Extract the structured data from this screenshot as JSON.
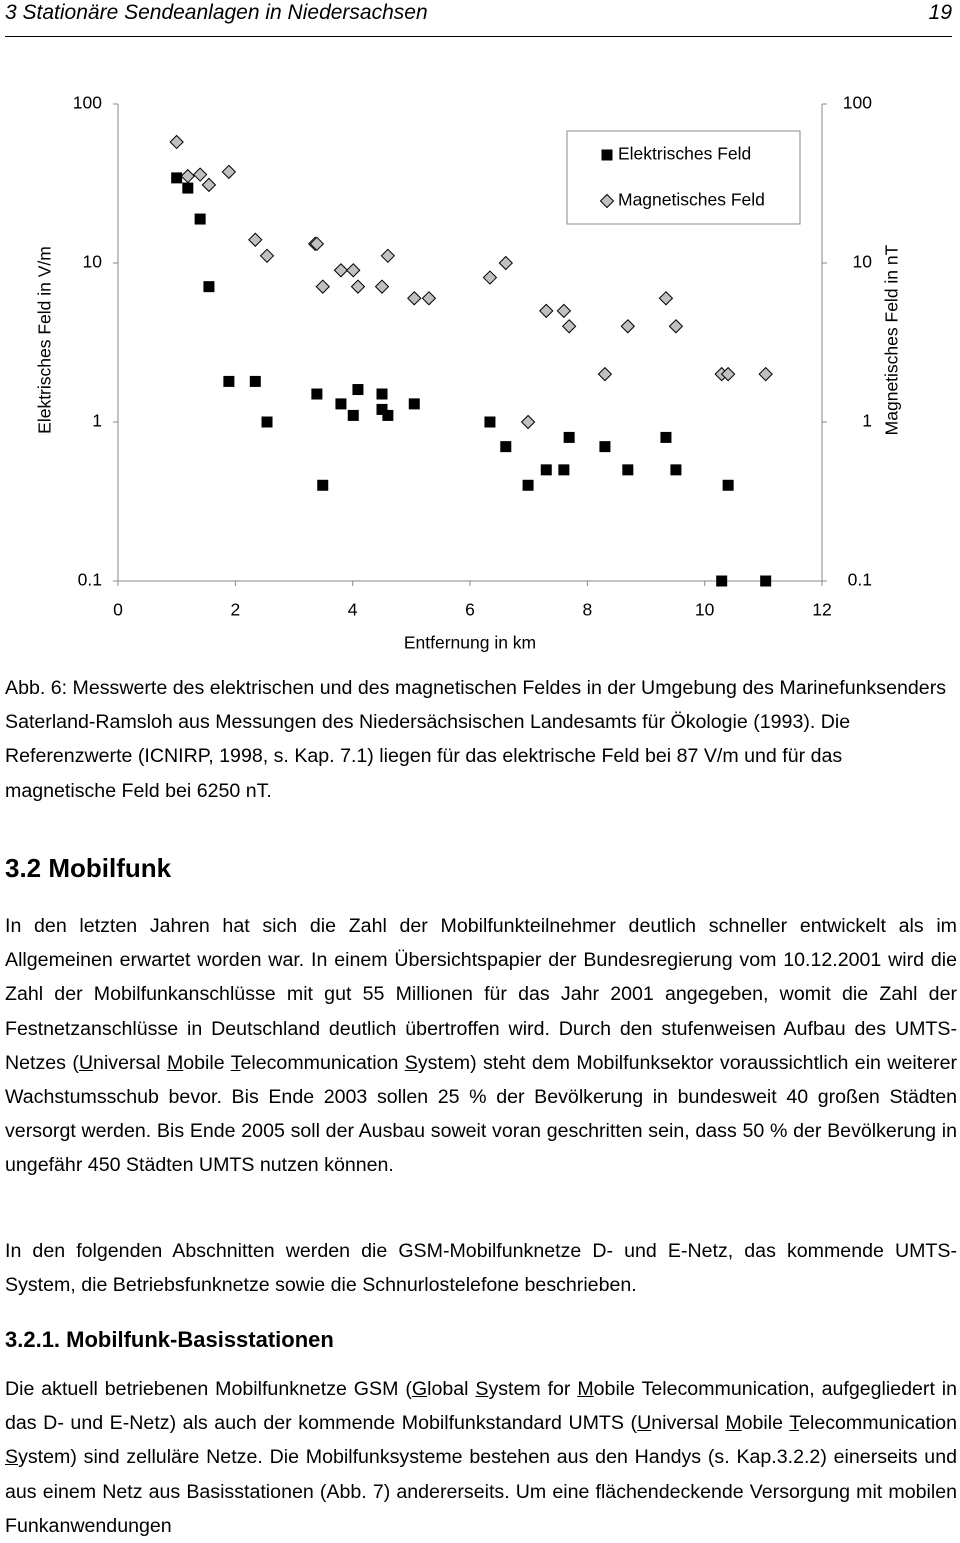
{
  "header": {
    "title": "3 Stationäre Sendeanlagen in Niedersachsen",
    "page": "19"
  },
  "chart_data": {
    "type": "scatter",
    "xlabel": "Entfernung in km",
    "ylabel": "Elektrisches Feld in V/m",
    "y2label": "Magnetisches Feld in nT",
    "xlim": [
      0,
      12
    ],
    "xticks": [
      0,
      2,
      4,
      6,
      8,
      10,
      12
    ],
    "ylim": [
      0.1,
      100
    ],
    "yticks": [
      0.1,
      1,
      10,
      100
    ],
    "y2lim": [
      0.1,
      100
    ],
    "y2ticks": [
      0.1,
      1,
      10,
      100
    ],
    "log_y": true,
    "legend": "upper right",
    "series": [
      {
        "name": "Elektrisches Feld",
        "color": "#000000",
        "marker": "square",
        "x": [
          1.0,
          1.19,
          1.4,
          1.55,
          1.89,
          2.34,
          2.54,
          3.39,
          3.49,
          3.8,
          4.01,
          4.09,
          4.5,
          4.5,
          4.6,
          5.05,
          6.34,
          6.61,
          6.99,
          7.3,
          7.6,
          7.69,
          8.3,
          8.69,
          9.34,
          9.51,
          10.4,
          10.29,
          11.04
        ],
        "values": [
          34.3,
          29.6,
          18.9,
          7.1,
          1.8,
          1.8,
          1.0,
          1.5,
          0.4,
          1.3,
          1.1,
          1.6,
          1.5,
          1.2,
          1.1,
          1.3,
          1.0,
          0.7,
          0.4,
          0.5,
          0.5,
          0.8,
          0.7,
          0.5,
          0.8,
          0.5,
          0.4,
          0.1,
          0.1
        ]
      },
      {
        "name": "Magnetisches Feld",
        "color": "#c0c0c0",
        "marker": "diamond",
        "axis": "y2",
        "x": [
          1.0,
          1.19,
          1.4,
          1.55,
          1.89,
          2.34,
          2.54,
          3.36,
          3.39,
          3.49,
          3.8,
          4.01,
          4.09,
          4.5,
          4.6,
          5.05,
          5.3,
          6.34,
          6.61,
          6.99,
          7.3,
          7.6,
          7.69,
          8.3,
          8.69,
          9.34,
          9.51,
          10.29,
          10.4,
          11.04
        ],
        "values": [
          57.7,
          35.2,
          36,
          31,
          37.4,
          14,
          11.1,
          13.2,
          13.2,
          7.1,
          9.0,
          9.0,
          7.1,
          7.1,
          11.1,
          6.0,
          6.0,
          8.1,
          10,
          1.0,
          5.0,
          5.0,
          4.0,
          2.0,
          4.0,
          6.0,
          4.0,
          2.0,
          2.0,
          2.0
        ]
      }
    ]
  },
  "caption": "Abb. 6: Messwerte des elektrischen und des magnetischen Feldes in der Umgebung des Marinefunksenders Saterland-Ramsloh aus Messungen des Niedersächsischen Landesamts für Ökologie (1993). Die Referenzwerte (ICNIRP, 1998, s. Kap. 7.1) liegen für das elektrische Feld bei 87 V/m und für das magnetische Feld bei 6250 nT.",
  "sections": [
    {
      "heading": "3.2 Mobilfunk",
      "paragraphs": [
        [
          "In den letzten Jahren hat sich die Zahl der Mobilfunkteilnehmer deutlich schneller entwickelt als im Allgemeinen erwartet worden war. In einem Übersichtspapier der Bundesregierung vom 10.12.2001 wird die Zahl der Mobilfunkanschlüsse mit gut 55 Millionen für das Jahr 2001 angegeben, womit die Zahl der Festnetzanschlüsse in Deutschland deutlich übertroffen wird. Durch den stufenweisen Aufbau des UMTS-Netzes (",
          "U",
          "niversal ",
          "M",
          "obile ",
          "T",
          "elecommunication ",
          "S",
          "ystem) steht dem Mobilfunksektor voraussichtlich ein weiterer Wachstumsschub bevor. Bis Ende 2003 sollen 25 % der Bevölkerung in bundesweit 40 großen Städten versorgt werden. Bis Ende 2005 soll der Ausbau soweit voran geschritten sein, dass 50 % der Bevölkerung in ungefähr 450 Städten UMTS nutzen können."
        ],
        [
          "In den folgenden Abschnitten werden die GSM-Mobilfunknetze D- und E-Netz, das kommende UMTS-System, die Betriebsfunknetze sowie die Schnurlostelefone beschrieben."
        ]
      ]
    },
    {
      "heading": "3.2.1. Mobilfunk-Basisstationen",
      "paragraphs": [
        [
          "Die aktuell betriebenen Mobilfunknetze GSM (",
          "G",
          "lobal ",
          "S",
          "ystem for ",
          "M",
          "obile Telecommunication, aufgegliedert in das D- und E-Netz) als auch der kommende Mobilfunkstandard UMTS (",
          "U",
          "niversal ",
          "M",
          "obile ",
          "T",
          "elecommunication ",
          "S",
          "ystem) sind zelluläre Netze. Die Mobilfunksysteme bestehen aus den Handys (s. Kap.3.2.2) einerseits und aus einem Netz aus Basisstationen (Abb. 7) andererseits. Um eine flächendeckende Versorgung mit mobilen Funkanwendungen"
        ]
      ]
    }
  ]
}
